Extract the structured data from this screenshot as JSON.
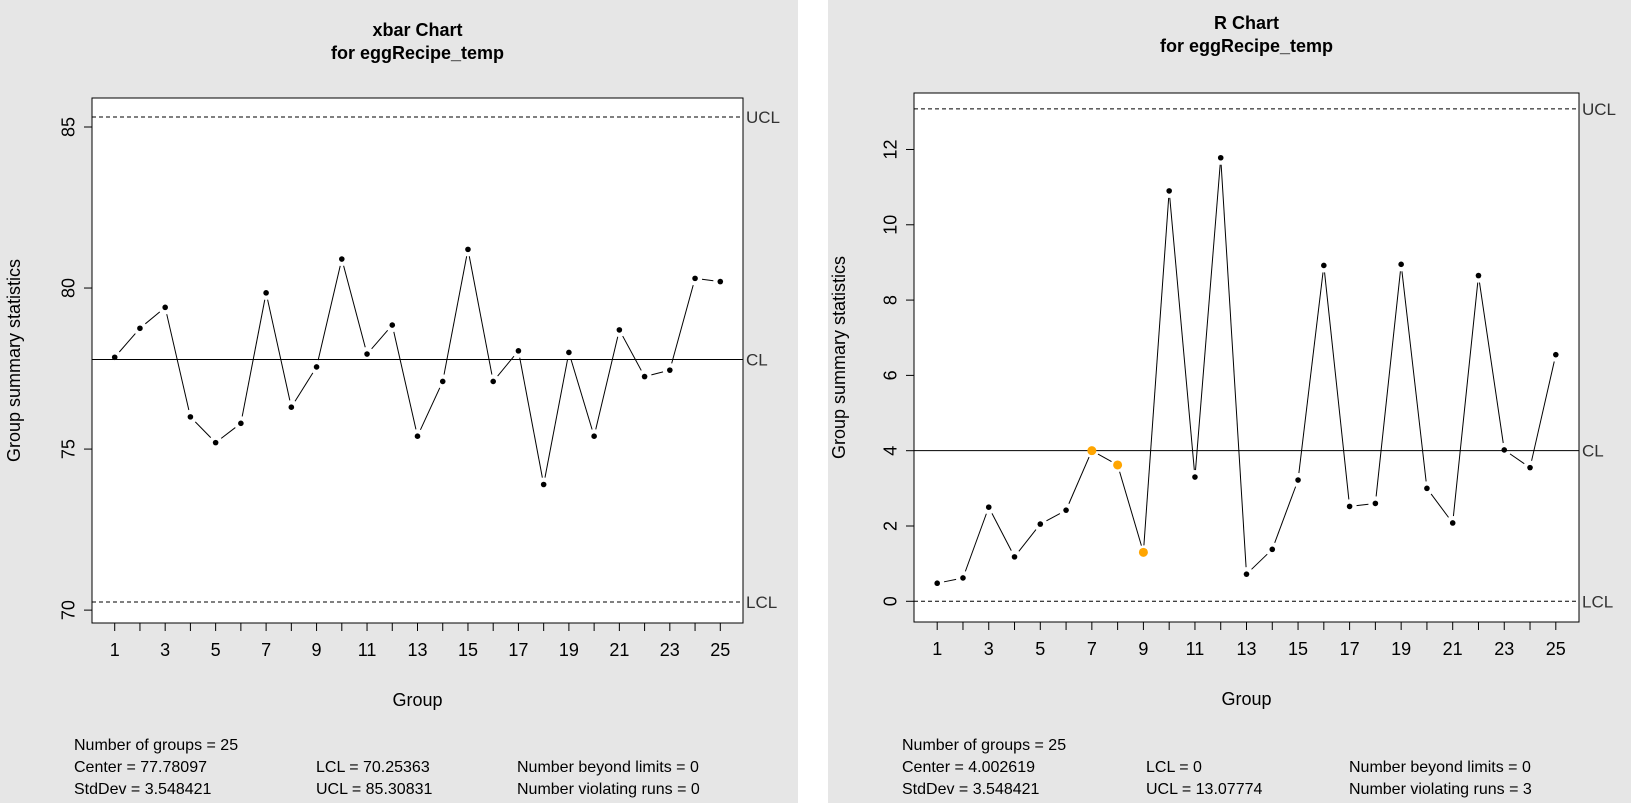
{
  "chart_data": [
    {
      "type": "line",
      "title": "xbar Chart",
      "subtitle": "for eggRecipe_temp",
      "xlabel": "Group",
      "ylabel": "Group summary statistics",
      "x": [
        1,
        2,
        3,
        4,
        5,
        6,
        7,
        8,
        9,
        10,
        11,
        12,
        13,
        14,
        15,
        16,
        17,
        18,
        19,
        20,
        21,
        22,
        23,
        24,
        25
      ],
      "values": [
        77.85,
        78.75,
        79.4,
        76.0,
        75.2,
        75.8,
        79.85,
        76.3,
        77.55,
        80.9,
        77.95,
        78.85,
        75.4,
        77.1,
        81.2,
        77.1,
        78.05,
        73.9,
        78.0,
        75.4,
        78.7,
        77.25,
        77.45,
        80.3,
        80.2
      ],
      "ylim": [
        69.6,
        85.9
      ],
      "xlim": [
        0.1,
        25.9
      ],
      "yticks": [
        "70",
        "75",
        "80",
        "85"
      ],
      "xticks": [
        "1",
        "3",
        "5",
        "7",
        "9",
        "11",
        "13",
        "15",
        "17",
        "19",
        "21",
        "23",
        "25"
      ],
      "xtick_values": [
        1,
        3,
        5,
        7,
        9,
        11,
        13,
        15,
        17,
        19,
        21,
        23,
        25
      ],
      "ytick_values": [
        70,
        75,
        80,
        85
      ],
      "minor_xticks": [
        2,
        4,
        6,
        8,
        10,
        12,
        14,
        16,
        18,
        20,
        22,
        24
      ],
      "center": 77.78097,
      "lcl": 70.25363,
      "ucl": 85.30831,
      "limit_labels": {
        "ucl": "UCL",
        "cl": "CL",
        "lcl": "LCL"
      },
      "highlighted_points": [],
      "point_color": "#000000",
      "highlight_color": "#ffa500",
      "background": "#e6e6e6",
      "stats": {
        "groups": "Number of groups = 25",
        "center": "Center = 77.78097",
        "stddev": "StdDev = 3.548421",
        "lcl": "LCL = 70.25363",
        "ucl": "UCL = 85.30831",
        "beyond": "Number beyond limits = 0",
        "violating": "Number violating runs = 0"
      }
    },
    {
      "type": "line",
      "title": "R Chart",
      "subtitle": "for eggRecipe_temp",
      "xlabel": "Group",
      "ylabel": "Group summary statistics",
      "x": [
        1,
        2,
        3,
        4,
        5,
        6,
        7,
        8,
        9,
        10,
        11,
        12,
        13,
        14,
        15,
        16,
        17,
        18,
        19,
        20,
        21,
        22,
        23,
        24,
        25
      ],
      "values": [
        0.48,
        0.62,
        2.5,
        1.18,
        2.05,
        2.42,
        4.0,
        3.62,
        1.3,
        10.9,
        3.3,
        11.78,
        0.72,
        1.38,
        3.22,
        8.92,
        2.52,
        2.6,
        8.95,
        3.0,
        2.08,
        8.65,
        4.02,
        3.55,
        6.55
      ],
      "ylim": [
        -0.55,
        13.5
      ],
      "xlim": [
        0.1,
        25.9
      ],
      "yticks": [
        "0",
        "2",
        "4",
        "6",
        "8",
        "10",
        "12"
      ],
      "xticks": [
        "1",
        "3",
        "5",
        "7",
        "9",
        "11",
        "13",
        "15",
        "17",
        "19",
        "21",
        "23",
        "25"
      ],
      "xtick_values": [
        1,
        3,
        5,
        7,
        9,
        11,
        13,
        15,
        17,
        19,
        21,
        23,
        25
      ],
      "ytick_values": [
        0,
        2,
        4,
        6,
        8,
        10,
        12
      ],
      "minor_xticks": [
        2,
        4,
        6,
        8,
        10,
        12,
        14,
        16,
        18,
        20,
        22,
        24
      ],
      "center": 4.002619,
      "lcl": 0,
      "ucl": 13.07774,
      "limit_labels": {
        "ucl": "UCL",
        "cl": "CL",
        "lcl": "LCL"
      },
      "highlighted_points": [
        7,
        8,
        9
      ],
      "point_color": "#000000",
      "highlight_color": "#ffa500",
      "background": "#e6e6e6",
      "stats": {
        "groups": "Number of groups = 25",
        "center": "Center = 4.002619",
        "stddev": "StdDev = 3.548421",
        "lcl": "LCL = 0",
        "ucl": "UCL = 13.07774",
        "beyond": "Number beyond limits = 0",
        "violating": "Number violating runs = 3"
      }
    }
  ]
}
